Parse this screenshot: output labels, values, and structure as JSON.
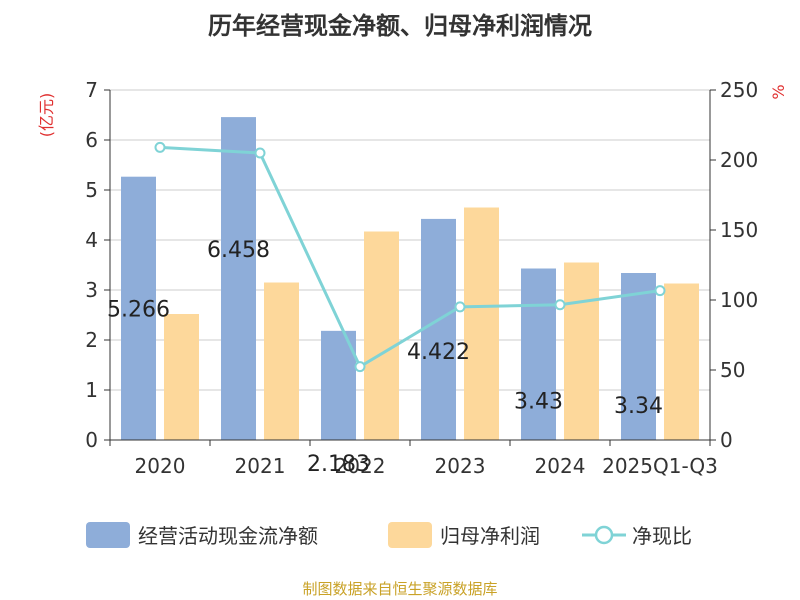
{
  "title": "历年经营现金净额、归母净利润情况",
  "source": "制图数据来自恒生聚源数据库",
  "chart_data": {
    "type": "bar",
    "categories": [
      "2020",
      "2021",
      "2022",
      "2023",
      "2024",
      "2025Q1-Q3"
    ],
    "series": [
      {
        "name": "经营活动现金流净额",
        "kind": "bar",
        "axis": "left",
        "color": "#8eadd9",
        "values": [
          5.266,
          6.458,
          2.183,
          4.422,
          3.43,
          3.34
        ],
        "labels": [
          "5.266",
          "6.458",
          "2.183",
          "4.422",
          "3.43",
          "3.34"
        ]
      },
      {
        "name": "归母净利润",
        "kind": "bar",
        "axis": "left",
        "color": "#fdd89b",
        "values": [
          2.52,
          3.15,
          4.17,
          4.65,
          3.55,
          3.13
        ]
      },
      {
        "name": "净现比",
        "kind": "line",
        "axis": "right",
        "color": "#7fd3d6",
        "values": [
          209,
          205,
          52.4,
          95.1,
          96.6,
          106.7
        ]
      }
    ],
    "left_axis": {
      "label": "(亿元)",
      "min": 0,
      "max": 7,
      "ticks": [
        "0",
        "1",
        "2",
        "3",
        "4",
        "5",
        "6",
        "7"
      ],
      "label_color": "#e03030"
    },
    "right_axis": {
      "label": "%",
      "min": 0,
      "max": 250,
      "ticks": [
        "0",
        "50",
        "100",
        "150",
        "200",
        "250"
      ],
      "label_color": "#e03030"
    },
    "grid": true,
    "legend_position": "bottom"
  }
}
